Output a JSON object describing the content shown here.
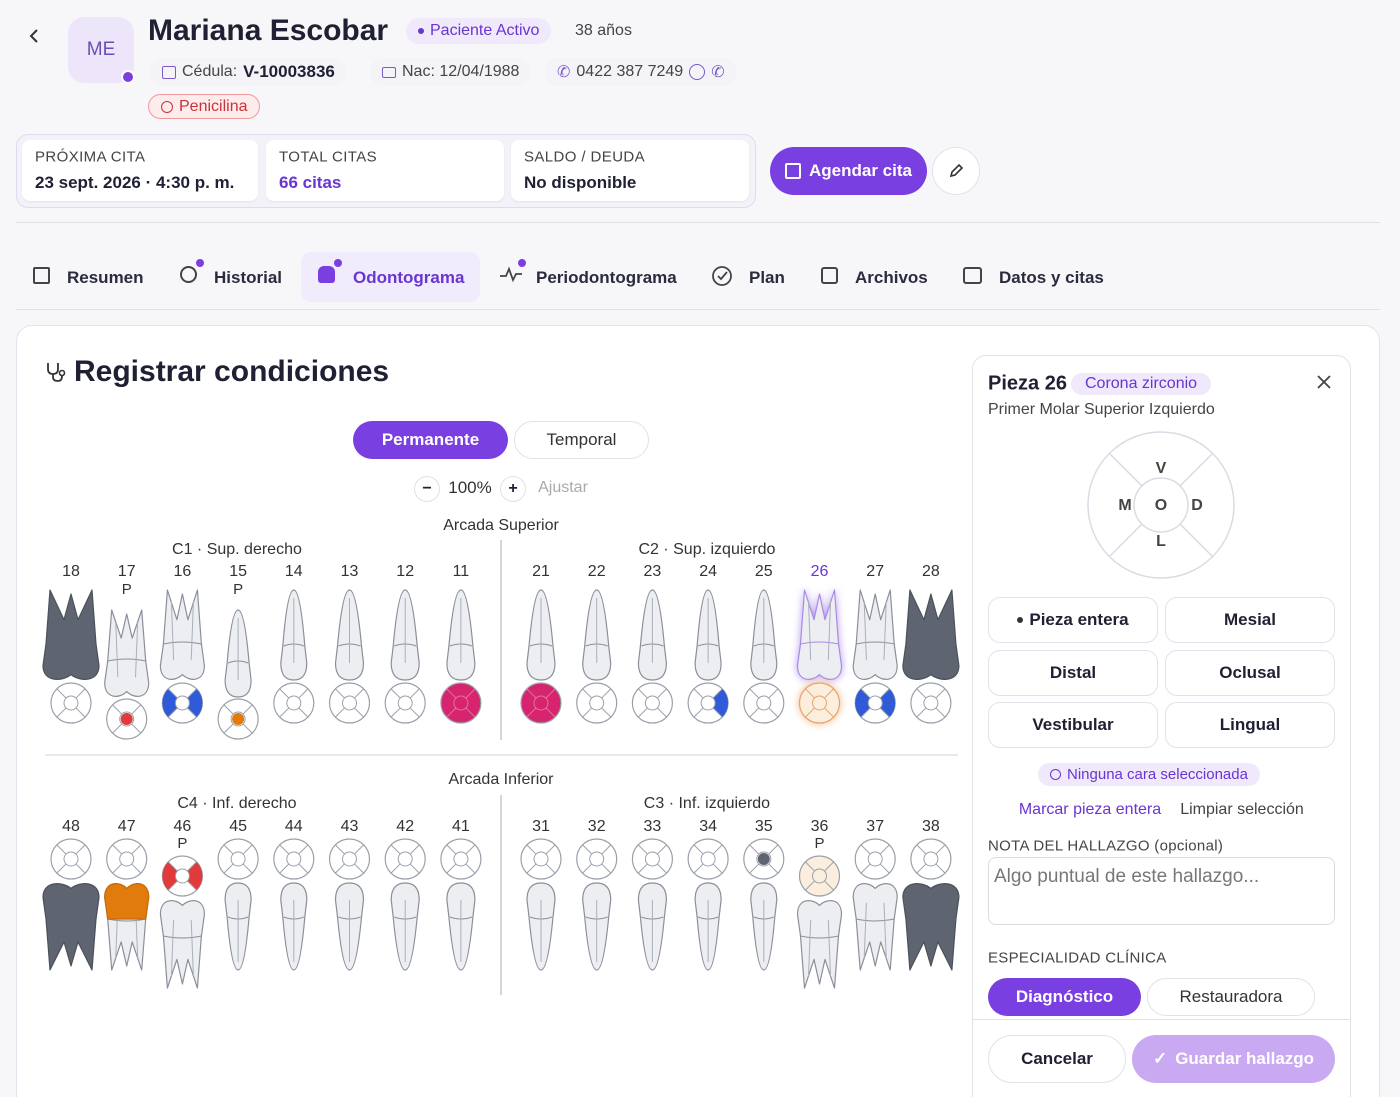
{
  "patient": {
    "initials": "ME",
    "name": "Mariana Escobar",
    "status": "Paciente Activo",
    "age": "38 años",
    "id_label": "Cédula:",
    "id": "V-10003836",
    "birth": "Nac: 12/04/1988",
    "phone": "0422 387 7249",
    "allergy": "Penicilina"
  },
  "stats": [
    {
      "label": "PRÓXIMA CITA",
      "value": "23 sept. 2026 · 4:30 p. m."
    },
    {
      "label": "TOTAL CITAS",
      "value": "66 citas"
    },
    {
      "label": "SALDO / DEUDA",
      "value": "No disponible"
    }
  ],
  "schedule_button": "Agendar cita",
  "tabs": [
    "Resumen",
    "Historial",
    "Odontograma",
    "Periodontograma",
    "Plan",
    "Archivos",
    "Datos y citas"
  ],
  "odontogram": {
    "title": "Registrar condiciones",
    "dentition": [
      "Permanente",
      "Temporal"
    ],
    "zoom": "100%",
    "fit": "Ajustar",
    "arches": [
      {
        "title": "Arcada Superior",
        "quadrants": [
          {
            "label": "C1 · Sup. derecho",
            "teeth": [
              {
                "number": "18",
                "tooth": "#5f6570"
              },
              {
                "number": "17",
                "mark": "P",
                "dot": "#e03a3a"
              },
              {
                "number": "16",
                "sides": [
                  "left",
                  "right"
                ],
                "side_color": "#2f5bd8"
              },
              {
                "number": "15",
                "mark": "P",
                "dot": "#e07b0c"
              },
              {
                "number": "14"
              },
              {
                "number": "13"
              },
              {
                "number": "12"
              },
              {
                "number": "11",
                "fill": "#d6246e"
              }
            ]
          },
          {
            "label": "C2 · Sup. izquierdo",
            "teeth": [
              {
                "number": "21",
                "fill": "#d6246e"
              },
              {
                "number": "22"
              },
              {
                "number": "23"
              },
              {
                "number": "24",
                "sides": [
                  "right"
                ],
                "side_color": "#2f5bd8"
              },
              {
                "number": "25"
              },
              {
                "number": "26",
                "selected": true,
                "fill": "#fbeedd"
              },
              {
                "number": "27",
                "sides": [
                  "left",
                  "right"
                ],
                "side_color": "#2f5bd8"
              },
              {
                "number": "28",
                "tooth": "#5f6570"
              }
            ]
          }
        ]
      },
      {
        "title": "Arcada Inferior",
        "quadrants": [
          {
            "label": "C4 · Inf. derecho",
            "teeth": [
              {
                "number": "48",
                "tooth": "#5f6570"
              },
              {
                "number": "47",
                "crown": "#e07b0c"
              },
              {
                "number": "46",
                "mark": "P",
                "sides": [
                  "left",
                  "right"
                ],
                "side_color": "#e03a3a"
              },
              {
                "number": "45"
              },
              {
                "number": "44"
              },
              {
                "number": "43"
              },
              {
                "number": "42"
              },
              {
                "number": "41"
              }
            ]
          },
          {
            "label": "C3 · Inf. izquierdo",
            "teeth": [
              {
                "number": "31"
              },
              {
                "number": "32"
              },
              {
                "number": "33"
              },
              {
                "number": "34"
              },
              {
                "number": "35",
                "dot": "#5f6570"
              },
              {
                "number": "36",
                "mark": "P",
                "fill": "#fbeedd"
              },
              {
                "number": "37"
              },
              {
                "number": "38",
                "tooth": "#5f6570"
              }
            ]
          }
        ]
      }
    ]
  },
  "panel": {
    "title": "Pieza 26",
    "badge": "Corona zirconio",
    "subtitle": "Primer Molar Superior Izquierdo",
    "surfaces": [
      "V",
      "M",
      "O",
      "D",
      "L"
    ],
    "buttons": [
      "Pieza entera",
      "Mesial",
      "Distal",
      "Oclusal",
      "Vestibular",
      "Lingual"
    ],
    "status": "Ninguna cara seleccionada",
    "links": [
      "Marcar pieza entera",
      "Limpiar selección"
    ],
    "note_label": "NOTA DEL HALLAZGO (opcional)",
    "note_placeholder": "Algo puntual de este hallazgo...",
    "specialty_label": "ESPECIALIDAD CLÍNICA",
    "specialties": [
      "Diagnóstico",
      "Restauradora"
    ],
    "cancel": "Cancelar",
    "save": "Guardar hallazgo"
  }
}
